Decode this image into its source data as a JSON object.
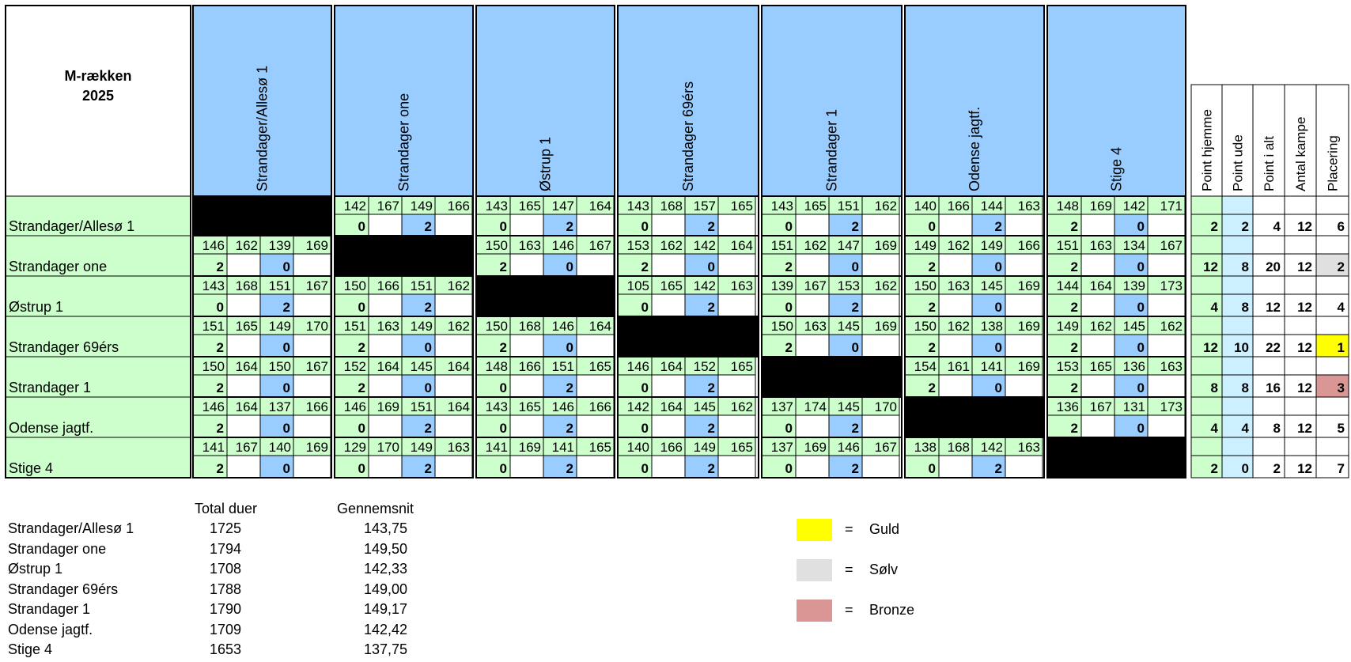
{
  "header": {
    "title_line1": "M-rækken",
    "title_line2": "2025"
  },
  "teams": [
    "Strandager/Allesø 1",
    "Strandager one",
    "Østrup 1",
    "Strandager 69érs",
    "Strandager 1",
    "Odense jagtf.",
    "Stige 4"
  ],
  "summary_headers": [
    "Point hjemme",
    "Point ude",
    "Point i alt",
    "Antal kampe",
    "Placering"
  ],
  "matrix": [
    [
      null,
      {
        "scores": [
          142,
          167,
          149,
          166
        ],
        "points": [
          0,
          2
        ]
      },
      {
        "scores": [
          143,
          165,
          147,
          164
        ],
        "points": [
          0,
          2
        ]
      },
      {
        "scores": [
          143,
          168,
          157,
          165
        ],
        "points": [
          0,
          2
        ]
      },
      {
        "scores": [
          143,
          165,
          151,
          162
        ],
        "points": [
          0,
          2
        ]
      },
      {
        "scores": [
          140,
          166,
          144,
          163
        ],
        "points": [
          0,
          2
        ]
      },
      {
        "scores": [
          148,
          169,
          142,
          171
        ],
        "points": [
          2,
          0
        ]
      }
    ],
    [
      {
        "scores": [
          146,
          162,
          139,
          169
        ],
        "points": [
          2,
          0
        ]
      },
      null,
      {
        "scores": [
          150,
          163,
          146,
          167
        ],
        "points": [
          2,
          0
        ]
      },
      {
        "scores": [
          153,
          162,
          142,
          164
        ],
        "points": [
          2,
          0
        ]
      },
      {
        "scores": [
          151,
          162,
          147,
          169
        ],
        "points": [
          2,
          0
        ]
      },
      {
        "scores": [
          149,
          162,
          149,
          166
        ],
        "points": [
          2,
          0
        ]
      },
      {
        "scores": [
          151,
          163,
          134,
          167
        ],
        "points": [
          2,
          0
        ]
      }
    ],
    [
      {
        "scores": [
          143,
          168,
          151,
          167
        ],
        "points": [
          0,
          2
        ]
      },
      {
        "scores": [
          150,
          166,
          151,
          162
        ],
        "points": [
          0,
          2
        ]
      },
      null,
      {
        "scores": [
          105,
          165,
          142,
          163
        ],
        "points": [
          0,
          2
        ]
      },
      {
        "scores": [
          139,
          167,
          153,
          162
        ],
        "points": [
          0,
          2
        ]
      },
      {
        "scores": [
          150,
          163,
          145,
          169
        ],
        "points": [
          2,
          0
        ]
      },
      {
        "scores": [
          144,
          164,
          139,
          173
        ],
        "points": [
          2,
          0
        ]
      }
    ],
    [
      {
        "scores": [
          151,
          165,
          149,
          170
        ],
        "points": [
          2,
          0
        ]
      },
      {
        "scores": [
          151,
          163,
          149,
          162
        ],
        "points": [
          2,
          0
        ]
      },
      {
        "scores": [
          150,
          168,
          146,
          164
        ],
        "points": [
          2,
          0
        ]
      },
      null,
      {
        "scores": [
          150,
          163,
          145,
          169
        ],
        "points": [
          2,
          0
        ]
      },
      {
        "scores": [
          150,
          162,
          138,
          169
        ],
        "points": [
          2,
          0
        ]
      },
      {
        "scores": [
          149,
          162,
          145,
          162
        ],
        "points": [
          2,
          0
        ]
      }
    ],
    [
      {
        "scores": [
          150,
          164,
          150,
          167
        ],
        "points": [
          2,
          0
        ]
      },
      {
        "scores": [
          152,
          164,
          145,
          164
        ],
        "points": [
          2,
          0
        ]
      },
      {
        "scores": [
          148,
          166,
          151,
          165
        ],
        "points": [
          0,
          2
        ]
      },
      {
        "scores": [
          146,
          164,
          152,
          165
        ],
        "points": [
          0,
          2
        ]
      },
      null,
      {
        "scores": [
          154,
          161,
          141,
          169
        ],
        "points": [
          2,
          0
        ]
      },
      {
        "scores": [
          153,
          165,
          136,
          163
        ],
        "points": [
          2,
          0
        ]
      }
    ],
    [
      {
        "scores": [
          146,
          164,
          137,
          166
        ],
        "points": [
          2,
          0
        ]
      },
      {
        "scores": [
          146,
          169,
          151,
          164
        ],
        "points": [
          0,
          2
        ]
      },
      {
        "scores": [
          143,
          165,
          146,
          166
        ],
        "points": [
          0,
          2
        ]
      },
      {
        "scores": [
          142,
          164,
          145,
          162
        ],
        "points": [
          0,
          2
        ]
      },
      {
        "scores": [
          137,
          174,
          145,
          170
        ],
        "points": [
          0,
          2
        ]
      },
      null,
      {
        "scores": [
          136,
          167,
          131,
          173
        ],
        "points": [
          2,
          0
        ]
      }
    ],
    [
      {
        "scores": [
          141,
          167,
          140,
          169
        ],
        "points": [
          2,
          0
        ]
      },
      {
        "scores": [
          129,
          170,
          149,
          163
        ],
        "points": [
          0,
          2
        ]
      },
      {
        "scores": [
          141,
          169,
          141,
          165
        ],
        "points": [
          0,
          2
        ]
      },
      {
        "scores": [
          140,
          166,
          149,
          165
        ],
        "points": [
          0,
          2
        ]
      },
      {
        "scores": [
          137,
          169,
          146,
          167
        ],
        "points": [
          0,
          2
        ]
      },
      {
        "scores": [
          138,
          168,
          142,
          163
        ],
        "points": [
          0,
          2
        ]
      },
      null
    ]
  ],
  "summary": [
    {
      "home": "2",
      "away": "2",
      "total": "4",
      "matches": "12",
      "placement": "6",
      "medal": ""
    },
    {
      "home": "12",
      "away": "8",
      "total": "20",
      "matches": "12",
      "placement": "2",
      "medal": "silver"
    },
    {
      "home": "4",
      "away": "8",
      "total": "12",
      "matches": "12",
      "placement": "4",
      "medal": ""
    },
    {
      "home": "12",
      "away": "10",
      "total": "22",
      "matches": "12",
      "placement": "1",
      "medal": "gold"
    },
    {
      "home": "8",
      "away": "8",
      "total": "16",
      "matches": "12",
      "placement": "3",
      "medal": "bronze"
    },
    {
      "home": "4",
      "away": "4",
      "total": "8",
      "matches": "12",
      "placement": "5",
      "medal": ""
    },
    {
      "home": "2",
      "away": "0",
      "total": "2",
      "matches": "12",
      "placement": "7",
      "medal": ""
    }
  ],
  "stats": {
    "total_header": "Total duer",
    "avg_header": "Gennemsnit",
    "rows": [
      {
        "team": "Strandager/Allesø 1",
        "total": "1725",
        "avg": "143,75"
      },
      {
        "team": "Strandager one",
        "total": "1794",
        "avg": "149,50"
      },
      {
        "team": "Østrup 1",
        "total": "1708",
        "avg": "142,33"
      },
      {
        "team": "Strandager 69érs",
        "total": "1788",
        "avg": "149,00"
      },
      {
        "team": "Strandager 1",
        "total": "1790",
        "avg": "149,17"
      },
      {
        "team": "Odense jagtf.",
        "total": "1709",
        "avg": "142,42"
      },
      {
        "team": "Stige 4",
        "total": "1653",
        "avg": "137,75"
      }
    ]
  },
  "legend": [
    {
      "color": "#ffff00",
      "eq": "=",
      "label": "Guld"
    },
    {
      "color": "#e0e0e0",
      "eq": "=",
      "label": "Sølv"
    },
    {
      "color": "#da9694",
      "eq": "=",
      "label": "Bronze"
    }
  ],
  "colors": {
    "header_blue": "#99ccff",
    "row_green": "#ccffcc",
    "point_blue": "#99ccff",
    "away_lightblue": "#ccf0ff",
    "gold": "#ffff00",
    "silver": "#e0e0e0",
    "bronze": "#da9694",
    "diag": "#000000"
  }
}
